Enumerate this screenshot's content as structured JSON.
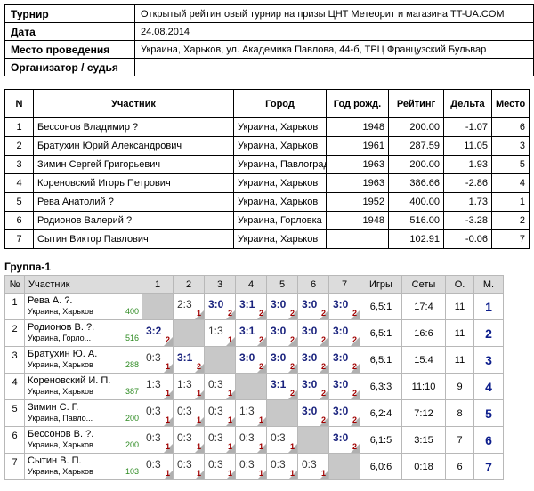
{
  "info": [
    {
      "key": "Турнир",
      "value": "Открытый рейтинговый турнир на призы ЦНТ Метеорит и магазина TT-UA.COM"
    },
    {
      "key": "Дата",
      "value": "24.08.2014"
    },
    {
      "key": "Место проведения",
      "value": "Украина, Харьков, ул. Академика Павлова, 44-б, ТРЦ Французский Бульвар"
    },
    {
      "key": "Организатор / судья",
      "value": ""
    }
  ],
  "participants": {
    "headers": [
      "N",
      "Участник",
      "Город",
      "Год рожд.",
      "Рейтинг",
      "Дельта",
      "Место"
    ],
    "rows": [
      {
        "n": "1",
        "name": "Бессонов Владимир ?",
        "city": "Украина, Харьков",
        "year": "1948",
        "rating": "200.00",
        "delta": "-1.07",
        "place": "6"
      },
      {
        "n": "2",
        "name": "Братухин Юрий Александрович",
        "city": "Украина, Харьков",
        "year": "1961",
        "rating": "287.59",
        "delta": "11.05",
        "place": "3"
      },
      {
        "n": "3",
        "name": "Зимин Сергей Григорьевич",
        "city": "Украина, Павлоград",
        "year": "1963",
        "rating": "200.00",
        "delta": "1.93",
        "place": "5"
      },
      {
        "n": "4",
        "name": "Кореновский Игорь Петрович",
        "city": "Украина, Харьков",
        "year": "1963",
        "rating": "386.66",
        "delta": "-2.86",
        "place": "4"
      },
      {
        "n": "5",
        "name": "Рева Анатолий ?",
        "city": "Украина, Харьков",
        "year": "1952",
        "rating": "400.00",
        "delta": "1.73",
        "place": "1"
      },
      {
        "n": "6",
        "name": "Родионов Валерий ?",
        "city": "Украина, Горловка",
        "year": "1948",
        "rating": "516.00",
        "delta": "-3.28",
        "place": "2"
      },
      {
        "n": "7",
        "name": "Сытин Виктор Павлович",
        "city": "Украина, Харьков",
        "year": "",
        "rating": "102.91",
        "delta": "-0.06",
        "place": "7"
      }
    ]
  },
  "group": {
    "title": "Группа-1",
    "headers": {
      "n": "№",
      "player": "Участник",
      "cols": [
        "1",
        "2",
        "3",
        "4",
        "5",
        "6",
        "7"
      ],
      "games": "Игры",
      "sets": "Сеты",
      "points": "О.",
      "place": "М."
    },
    "rows": [
      {
        "n": "1",
        "name": "Рева А. ?.",
        "city": "Украина, Харьков",
        "rating": "400",
        "results": [
          null,
          {
            "s": "2:3",
            "p": "1",
            "w": false
          },
          {
            "s": "3:0",
            "p": "2",
            "w": true
          },
          {
            "s": "3:1",
            "p": "2",
            "w": true
          },
          {
            "s": "3:0",
            "p": "2",
            "w": true
          },
          {
            "s": "3:0",
            "p": "2",
            "w": true
          },
          {
            "s": "3:0",
            "p": "2",
            "w": true
          }
        ],
        "games": "6,5:1",
        "sets": "17:4",
        "points": "11",
        "place": "1"
      },
      {
        "n": "2",
        "name": "Родионов В. ?.",
        "city": "Украина, Горло...",
        "rating": "516",
        "results": [
          {
            "s": "3:2",
            "p": "2",
            "w": true
          },
          null,
          {
            "s": "1:3",
            "p": "1",
            "w": false
          },
          {
            "s": "3:1",
            "p": "2",
            "w": true
          },
          {
            "s": "3:0",
            "p": "2",
            "w": true
          },
          {
            "s": "3:0",
            "p": "2",
            "w": true
          },
          {
            "s": "3:0",
            "p": "2",
            "w": true
          }
        ],
        "games": "6,5:1",
        "sets": "16:6",
        "points": "11",
        "place": "2"
      },
      {
        "n": "3",
        "name": "Братухин Ю. А.",
        "city": "Украина, Харьков",
        "rating": "288",
        "results": [
          {
            "s": "0:3",
            "p": "1",
            "w": false
          },
          {
            "s": "3:1",
            "p": "2",
            "w": true
          },
          null,
          {
            "s": "3:0",
            "p": "2",
            "w": true
          },
          {
            "s": "3:0",
            "p": "2",
            "w": true
          },
          {
            "s": "3:0",
            "p": "2",
            "w": true
          },
          {
            "s": "3:0",
            "p": "2",
            "w": true
          }
        ],
        "games": "6,5:1",
        "sets": "15:4",
        "points": "11",
        "place": "3"
      },
      {
        "n": "4",
        "name": "Кореновский И. П.",
        "city": "Украина, Харьков",
        "rating": "387",
        "results": [
          {
            "s": "1:3",
            "p": "1",
            "w": false
          },
          {
            "s": "1:3",
            "p": "1",
            "w": false
          },
          {
            "s": "0:3",
            "p": "1",
            "w": false
          },
          null,
          {
            "s": "3:1",
            "p": "2",
            "w": true
          },
          {
            "s": "3:0",
            "p": "2",
            "w": true
          },
          {
            "s": "3:0",
            "p": "2",
            "w": true
          }
        ],
        "games": "6,3:3",
        "sets": "11:10",
        "points": "9",
        "place": "4"
      },
      {
        "n": "5",
        "name": "Зимин С. Г.",
        "city": "Украина, Павло...",
        "rating": "200",
        "results": [
          {
            "s": "0:3",
            "p": "1",
            "w": false
          },
          {
            "s": "0:3",
            "p": "1",
            "w": false
          },
          {
            "s": "0:3",
            "p": "1",
            "w": false
          },
          {
            "s": "1:3",
            "p": "1",
            "w": false
          },
          null,
          {
            "s": "3:0",
            "p": "2",
            "w": true
          },
          {
            "s": "3:0",
            "p": "2",
            "w": true
          }
        ],
        "games": "6,2:4",
        "sets": "7:12",
        "points": "8",
        "place": "5"
      },
      {
        "n": "6",
        "name": "Бессонов В. ?.",
        "city": "Украина, Харьков",
        "rating": "200",
        "results": [
          {
            "s": "0:3",
            "p": "1",
            "w": false
          },
          {
            "s": "0:3",
            "p": "1",
            "w": false
          },
          {
            "s": "0:3",
            "p": "1",
            "w": false
          },
          {
            "s": "0:3",
            "p": "1",
            "w": false
          },
          {
            "s": "0:3",
            "p": "1",
            "w": false
          },
          null,
          {
            "s": "3:0",
            "p": "2",
            "w": true
          }
        ],
        "games": "6,1:5",
        "sets": "3:15",
        "points": "7",
        "place": "6"
      },
      {
        "n": "7",
        "name": "Сытин В. П.",
        "city": "Украина, Харьков",
        "rating": "103",
        "results": [
          {
            "s": "0:3",
            "p": "1",
            "w": false
          },
          {
            "s": "0:3",
            "p": "1",
            "w": false
          },
          {
            "s": "0:3",
            "p": "1",
            "w": false
          },
          {
            "s": "0:3",
            "p": "1",
            "w": false
          },
          {
            "s": "0:3",
            "p": "1",
            "w": false
          },
          {
            "s": "0:3",
            "p": "1",
            "w": false
          },
          null
        ],
        "games": "6,0:6",
        "sets": "0:18",
        "points": "6",
        "place": "7"
      }
    ]
  }
}
